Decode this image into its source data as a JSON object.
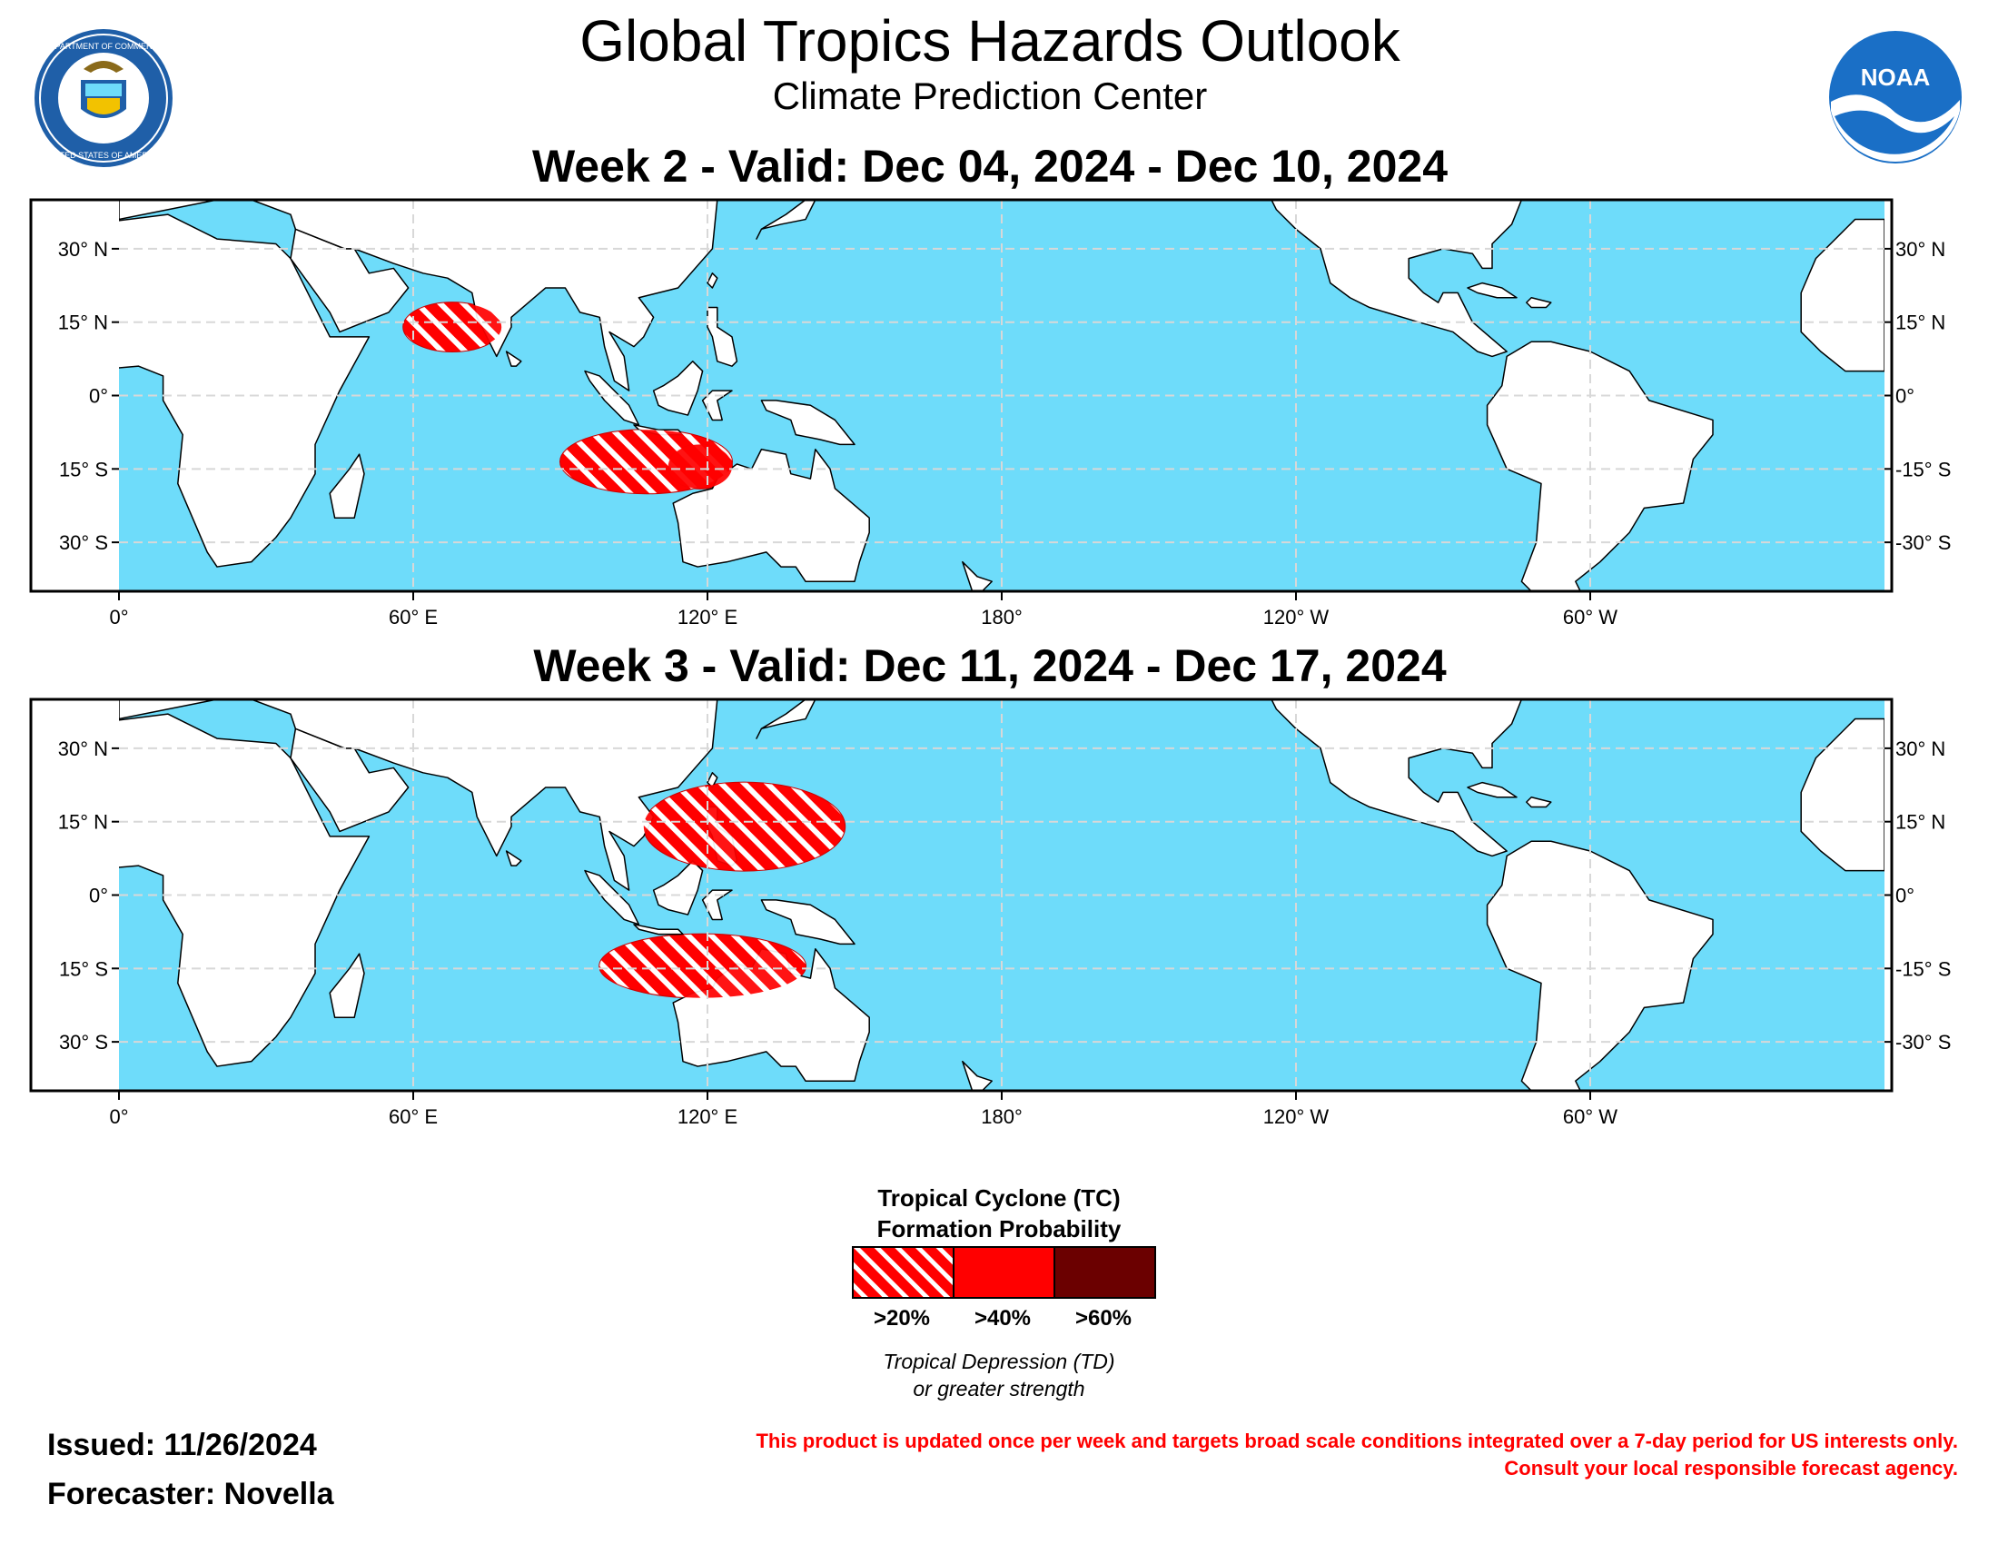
{
  "header": {
    "title": "Global Tropics Hazards Outlook",
    "subtitle": "Climate Prediction Center"
  },
  "logos": {
    "doc": {
      "icon": "department-of-commerce-seal",
      "text": "DEPARTMENT OF COMMERCE · UNITED STATES OF AMERICA"
    },
    "noaa": {
      "icon": "noaa-logo",
      "text": "NOAA"
    }
  },
  "maps": [
    {
      "title": "Week 2 - Valid: Dec 04, 2024 - Dec 10, 2024",
      "hazards": [
        {
          "region": "Arabian Sea",
          "level": ">20%",
          "lon_range": [
            58,
            78
          ],
          "lat_range": [
            9,
            19
          ]
        },
        {
          "region": "Southeast Indian Ocean / Timor Sea",
          "level": ">20%",
          "lon_range": [
            90,
            125
          ],
          "lat_range": [
            -20,
            -7
          ]
        },
        {
          "region": "Timor Sea",
          "level": ">40%",
          "lon_range": [
            112,
            125
          ],
          "lat_range": [
            -19,
            -10
          ]
        }
      ]
    },
    {
      "title": "Week 3 - Valid: Dec 11, 2024 - Dec 17, 2024",
      "hazards": [
        {
          "region": "South China Sea / Philippines / West Pacific",
          "level": ">20%",
          "lon_range": [
            107,
            148
          ],
          "lat_range": [
            5,
            23
          ]
        },
        {
          "region": "Southeast Indian Ocean / Timor Sea",
          "level": ">20%",
          "lon_range": [
            98,
            140
          ],
          "lat_range": [
            -21,
            -8
          ]
        }
      ]
    }
  ],
  "axes": {
    "lat_labels_left": [
      "30° N",
      "15° N",
      "0°",
      "15° S",
      "30° S"
    ],
    "lat_labels_right": [
      "30° N",
      "15° N",
      "0°",
      "-15° S",
      "-30° S"
    ],
    "lat_values": [
      30,
      15,
      0,
      -15,
      -30
    ],
    "lon_labels": [
      "0°",
      "60° E",
      "120° E",
      "180°",
      "120° W",
      "60° W"
    ],
    "lon_values": [
      0,
      60,
      120,
      180,
      240,
      300
    ],
    "lon_range": [
      0,
      360
    ],
    "lat_range": [
      -40,
      40
    ],
    "grid": true
  },
  "legend": {
    "title_line1": "Tropical Cyclone (TC)",
    "title_line2": "Formation Probability",
    "items": [
      {
        "label": ">20%",
        "style": "hatched",
        "color": "#ff0000"
      },
      {
        "label": ">40%",
        "style": "solid",
        "color": "#ff0000"
      },
      {
        "label": ">60%",
        "style": "solid",
        "color": "#6b0000"
      }
    ],
    "note_line1": "Tropical Depression (TD)",
    "note_line2": "or greater strength"
  },
  "footer": {
    "issued": "Issued: 11/26/2024",
    "forecaster": "Forecaster: Novella",
    "disclaimer_line1": "This product is updated once per week and targets broad scale conditions integrated over a 7-day period for US interests only.",
    "disclaimer_line2": "Consult your local responsible forecast agency."
  },
  "colors": {
    "ocean": "#6edcfa",
    "land": "#ffffff",
    "hazard_red": "#ff0000",
    "hazard_dark": "#6b0000"
  }
}
